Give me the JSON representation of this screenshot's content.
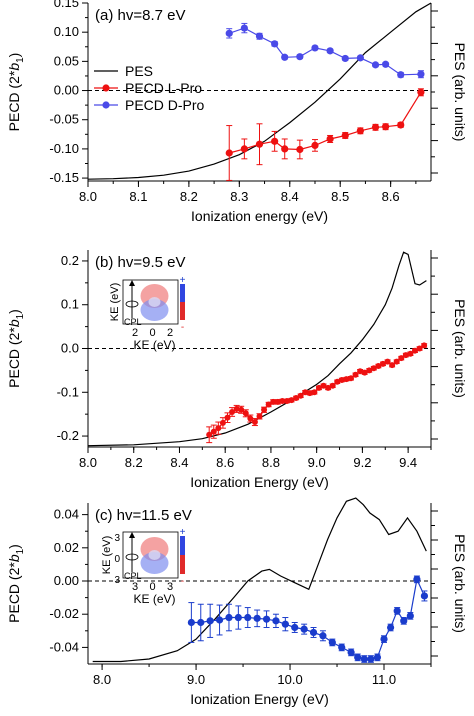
{
  "figure": {
    "axis_title_pecd_main": "PECD (2*",
    "axis_title_pecd_sym": "b",
    "axis_title_pecd_sub": "1",
    "axis_title_pecd_close": ")"
  },
  "chart_data": [
    {
      "type": "scatter",
      "panel": "(a) hv=8.7 eV",
      "title": "(a) hv=8.7 eV",
      "xlabel": "Ionization energy (eV)",
      "ylabel": "PECD (2*b1)",
      "y2label": "PES (arb. units)",
      "xlim": [
        8.0,
        8.68
      ],
      "ylim": [
        -0.155,
        0.15
      ],
      "xticks": [
        "8.0",
        "8.1",
        "8.2",
        "8.3",
        "8.4",
        "8.5",
        "8.6"
      ],
      "yticks": [
        "-0.15",
        "-0.10",
        "-0.05",
        "0.00",
        "0.05",
        "0.10",
        "0.15"
      ],
      "zero_line": "dashed",
      "legend": {
        "position": "left",
        "entries": [
          "PES",
          "PECD L-Pro",
          "PECD D-Pro"
        ]
      },
      "pes": {
        "name": "PES",
        "color": "#000000",
        "x": [
          8.0,
          8.05,
          8.1,
          8.15,
          8.2,
          8.25,
          8.3,
          8.35,
          8.4,
          8.45,
          8.5,
          8.55,
          8.6,
          8.65,
          8.68
        ],
        "y": [
          -0.152,
          -0.151,
          -0.149,
          -0.145,
          -0.138,
          -0.126,
          -0.11,
          -0.087,
          -0.055,
          -0.02,
          0.02,
          0.065,
          0.1,
          0.135,
          0.15
        ]
      },
      "series": [
        {
          "name": "PECD L-Pro",
          "color": "#ee1111",
          "x": [
            8.28,
            8.31,
            8.34,
            8.37,
            8.39,
            8.42,
            8.45,
            8.48,
            8.51,
            8.54,
            8.57,
            8.59,
            8.62,
            8.66
          ],
          "y": [
            -0.107,
            -0.1,
            -0.092,
            -0.087,
            -0.1,
            -0.101,
            -0.094,
            -0.083,
            -0.077,
            -0.069,
            -0.063,
            -0.062,
            -0.059,
            -0.003
          ],
          "err": [
            0.047,
            0.017,
            0.035,
            0.017,
            0.017,
            0.016,
            0.01,
            0.006,
            0.005,
            0.005,
            0.005,
            0.005,
            0.004,
            0.006
          ]
        },
        {
          "name": "PECD D-Pro",
          "color": "#4a4ae8",
          "x": [
            8.28,
            8.31,
            8.34,
            8.37,
            8.39,
            8.42,
            8.45,
            8.48,
            8.51,
            8.54,
            8.57,
            8.59,
            8.62,
            8.66
          ],
          "y": [
            0.098,
            0.107,
            0.093,
            0.08,
            0.057,
            0.058,
            0.073,
            0.068,
            0.055,
            0.056,
            0.044,
            0.045,
            0.027,
            0.028
          ],
          "err": [
            0.008,
            0.008,
            0.005,
            0.004,
            0.003,
            0.003,
            0.003,
            0.003,
            0.003,
            0.003,
            0.003,
            0.003,
            0.004,
            0.006
          ]
        }
      ]
    },
    {
      "type": "scatter",
      "panel": "(b) hv=9.5 eV",
      "title": "(b) hv=9.5 eV",
      "xlabel": "Ionization Energy (eV)",
      "ylabel": "PECD (2*b1)",
      "y2label": "PES (arb. units)",
      "xlim": [
        8.0,
        9.5
      ],
      "ylim": [
        -0.225,
        0.225
      ],
      "xticks": [
        "8.0",
        "8.2",
        "8.4",
        "8.6",
        "8.8",
        "9.0",
        "9.2",
        "9.4"
      ],
      "yticks": [
        "-0.2",
        "-0.1",
        "0.0",
        "0.1",
        "0.2"
      ],
      "zero_line": "dashed",
      "inset": {
        "ylabel": "KE (eV)",
        "xlabel": "KE (eV)",
        "xticks": [
          "2",
          "0",
          "2"
        ],
        "label": "CPL"
      },
      "pes": {
        "name": "PES",
        "color": "#000000",
        "x": [
          8.0,
          8.2,
          8.4,
          8.5,
          8.6,
          8.7,
          8.8,
          8.9,
          9.0,
          9.05,
          9.1,
          9.15,
          9.2,
          9.25,
          9.3,
          9.33,
          9.36,
          9.38,
          9.4,
          9.43,
          9.45,
          9.48
        ],
        "y": [
          -0.222,
          -0.22,
          -0.213,
          -0.206,
          -0.193,
          -0.173,
          -0.145,
          -0.115,
          -0.082,
          -0.062,
          -0.035,
          -0.01,
          0.02,
          0.055,
          0.1,
          0.138,
          0.19,
          0.22,
          0.215,
          0.148,
          0.145,
          0.155
        ]
      },
      "series": [
        {
          "name": "PECD L-Pro",
          "color": "#ee1111",
          "x": [
            8.53,
            8.55,
            8.57,
            8.59,
            8.61,
            8.63,
            8.65,
            8.67,
            8.69,
            8.71,
            8.73,
            8.75,
            8.77,
            8.79,
            8.81,
            8.83,
            8.85,
            8.87,
            8.89,
            8.91,
            8.93,
            8.95,
            8.97,
            8.99,
            9.01,
            9.03,
            9.05,
            9.07,
            9.09,
            9.11,
            9.13,
            9.15,
            9.17,
            9.19,
            9.21,
            9.23,
            9.25,
            9.27,
            9.29,
            9.31,
            9.33,
            9.35,
            9.37,
            9.39,
            9.41,
            9.43,
            9.45,
            9.47
          ],
          "y": [
            -0.197,
            -0.19,
            -0.182,
            -0.17,
            -0.158,
            -0.145,
            -0.138,
            -0.14,
            -0.148,
            -0.16,
            -0.168,
            -0.155,
            -0.14,
            -0.128,
            -0.122,
            -0.122,
            -0.12,
            -0.12,
            -0.118,
            -0.113,
            -0.108,
            -0.1,
            -0.102,
            -0.1,
            -0.09,
            -0.085,
            -0.09,
            -0.085,
            -0.076,
            -0.072,
            -0.07,
            -0.068,
            -0.06,
            -0.052,
            -0.055,
            -0.05,
            -0.045,
            -0.04,
            -0.035,
            -0.03,
            -0.038,
            -0.03,
            -0.022,
            -0.015,
            -0.012,
            -0.005,
            0.0,
            0.007
          ],
          "err": [
            0.018,
            0.015,
            0.014,
            0.012,
            0.011,
            0.01,
            0.008,
            0.008,
            0.008,
            0.008,
            0.008,
            0.006,
            0.006,
            0.005,
            0.005,
            0.005,
            0.004,
            0.004,
            0.004,
            0.004,
            0.004,
            0.004,
            0.004,
            0.004,
            0.004,
            0.004,
            0.004,
            0.004,
            0.004,
            0.004,
            0.004,
            0.004,
            0.004,
            0.004,
            0.004,
            0.004,
            0.004,
            0.004,
            0.004,
            0.004,
            0.004,
            0.004,
            0.004,
            0.004,
            0.004,
            0.004,
            0.004,
            0.004
          ]
        }
      ]
    },
    {
      "type": "scatter",
      "panel": "(c) hv=11.5 eV",
      "title": "(c) hv=11.5 eV",
      "xlabel": "Ionization Energy (eV)",
      "ylabel": "PECD (2*b1)",
      "y2label": "PES (arb. units)",
      "xlim": [
        7.85,
        11.5
      ],
      "ylim": [
        -0.05,
        0.047
      ],
      "xticks": [
        "8.0",
        "9.0",
        "10.0",
        "11.0"
      ],
      "yticks": [
        "-0.04",
        "-0.02",
        "0.00",
        "0.02",
        "0.04"
      ],
      "zero_line": "dashed",
      "inset": {
        "ylabel": "KE (eV)",
        "xlabel": "KE (eV)",
        "xticks": [
          "3",
          "0",
          "3"
        ],
        "yticks": [
          "3",
          "0",
          "3"
        ],
        "label": "CPL"
      },
      "pes": {
        "name": "PES",
        "color": "#000000",
        "x": [
          7.9,
          8.2,
          8.5,
          8.8,
          9.0,
          9.2,
          9.4,
          9.55,
          9.7,
          9.78,
          9.9,
          10.05,
          10.2,
          10.3,
          10.4,
          10.5,
          10.6,
          10.7,
          10.78,
          10.85,
          10.95,
          11.05,
          11.15,
          11.25,
          11.35,
          11.45
        ],
        "y": [
          -0.0485,
          -0.0485,
          -0.047,
          -0.042,
          -0.035,
          -0.023,
          -0.01,
          0.0,
          0.006,
          0.007,
          0.003,
          -0.001,
          -0.005,
          0.01,
          0.025,
          0.038,
          0.048,
          0.05,
          0.046,
          0.041,
          0.037,
          0.028,
          0.03,
          0.038,
          0.03,
          0.018
        ]
      },
      "series": [
        {
          "name": "PECD D-Pro",
          "color": "#1a3ccc",
          "x": [
            8.95,
            9.05,
            9.15,
            9.25,
            9.35,
            9.45,
            9.55,
            9.65,
            9.75,
            9.85,
            9.95,
            10.05,
            10.15,
            10.25,
            10.35,
            10.45,
            10.55,
            10.65,
            10.72,
            10.79,
            10.86,
            10.93,
            11.0,
            11.07,
            11.14,
            11.21,
            11.28,
            11.35,
            11.43
          ],
          "y": [
            -0.025,
            -0.025,
            -0.024,
            -0.0235,
            -0.022,
            -0.022,
            -0.022,
            -0.0225,
            -0.023,
            -0.024,
            -0.026,
            -0.028,
            -0.029,
            -0.031,
            -0.033,
            -0.037,
            -0.04,
            -0.043,
            -0.046,
            -0.047,
            -0.047,
            -0.046,
            -0.035,
            -0.028,
            -0.018,
            -0.024,
            -0.021,
            0.001,
            -0.009
          ],
          "err": [
            0.012,
            0.011,
            0.01,
            0.009,
            0.008,
            0.007,
            0.006,
            0.005,
            0.005,
            0.004,
            0.004,
            0.003,
            0.003,
            0.003,
            0.003,
            0.002,
            0.002,
            0.002,
            0.002,
            0.002,
            0.002,
            0.002,
            0.002,
            0.002,
            0.002,
            0.002,
            0.002,
            0.002,
            0.003
          ]
        }
      ]
    }
  ]
}
